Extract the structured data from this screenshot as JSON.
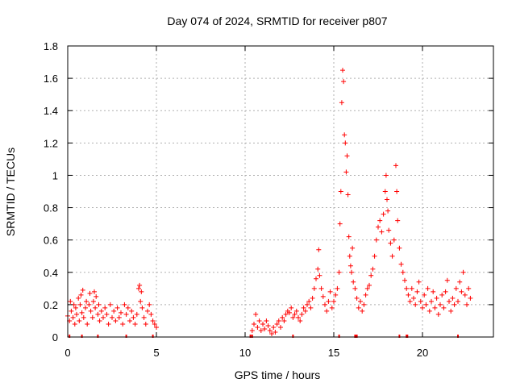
{
  "chart_data": {
    "type": "scatter",
    "title": "Day 074 of 2024, SRMTID for receiver p807",
    "xlabel": "GPS time / hours",
    "ylabel": "SRMTID / TECUs",
    "xlim": [
      0,
      24
    ],
    "ylim": [
      0,
      1.8
    ],
    "x_ticks": [
      0,
      5,
      10,
      15,
      20
    ],
    "x_tick_labels": [
      "0",
      "5",
      "10",
      "15",
      "20"
    ],
    "y_ticks": [
      0,
      0.2,
      0.4,
      0.6,
      0.8,
      1,
      1.2,
      1.4,
      1.6,
      1.8
    ],
    "y_tick_labels": [
      "0",
      "0.2",
      "0.4",
      "0.6",
      "0.8",
      "1",
      "1.2",
      "1.4",
      "1.6",
      "1.8"
    ],
    "grid": true,
    "marker": "+",
    "marker_color": "#ff0000",
    "series": [
      {
        "name": "SRMTID",
        "points": [
          [
            0.0,
            0.13
          ],
          [
            0.1,
            0.1
          ],
          [
            0.15,
            0.22
          ],
          [
            0.2,
            0.16
          ],
          [
            0.3,
            0.12
          ],
          [
            0.35,
            0.2
          ],
          [
            0.4,
            0.08
          ],
          [
            0.45,
            0.18
          ],
          [
            0.5,
            0.14
          ],
          [
            0.6,
            0.24
          ],
          [
            0.65,
            0.1
          ],
          [
            0.7,
            0.2
          ],
          [
            0.75,
            0.26
          ],
          [
            0.8,
            0.15
          ],
          [
            0.85,
            0.29
          ],
          [
            0.9,
            0.12
          ],
          [
            1.0,
            0.18
          ],
          [
            1.05,
            0.22
          ],
          [
            1.1,
            0.08
          ],
          [
            1.2,
            0.2
          ],
          [
            1.25,
            0.27
          ],
          [
            1.3,
            0.16
          ],
          [
            1.4,
            0.12
          ],
          [
            1.45,
            0.22
          ],
          [
            1.5,
            0.28
          ],
          [
            1.55,
            0.18
          ],
          [
            1.6,
            0.25
          ],
          [
            1.7,
            0.14
          ],
          [
            1.75,
            0.2
          ],
          [
            1.8,
            0.1
          ],
          [
            1.9,
            0.16
          ],
          [
            2.0,
            0.12
          ],
          [
            2.1,
            0.18
          ],
          [
            2.2,
            0.14
          ],
          [
            2.3,
            0.08
          ],
          [
            2.4,
            0.2
          ],
          [
            2.5,
            0.12
          ],
          [
            2.6,
            0.16
          ],
          [
            2.7,
            0.1
          ],
          [
            2.8,
            0.18
          ],
          [
            2.9,
            0.12
          ],
          [
            3.0,
            0.15
          ],
          [
            3.1,
            0.08
          ],
          [
            3.2,
            0.2
          ],
          [
            3.3,
            0.14
          ],
          [
            3.4,
            0.18
          ],
          [
            3.5,
            0.1
          ],
          [
            3.6,
            0.16
          ],
          [
            3.7,
            0.12
          ],
          [
            3.8,
            0.08
          ],
          [
            3.9,
            0.14
          ],
          [
            4.0,
            0.3
          ],
          [
            4.05,
            0.32
          ],
          [
            4.1,
            0.22
          ],
          [
            4.15,
            0.28
          ],
          [
            4.2,
            0.18
          ],
          [
            4.3,
            0.12
          ],
          [
            4.4,
            0.08
          ],
          [
            4.5,
            0.16
          ],
          [
            4.6,
            0.2
          ],
          [
            4.7,
            0.14
          ],
          [
            4.8,
            0.1
          ],
          [
            4.9,
            0.08
          ],
          [
            5.0,
            0.06
          ],
          [
            10.4,
            0.04
          ],
          [
            10.5,
            0.08
          ],
          [
            10.6,
            0.14
          ],
          [
            10.7,
            0.06
          ],
          [
            10.8,
            0.1
          ],
          [
            10.9,
            0.04
          ],
          [
            11.0,
            0.08
          ],
          [
            11.1,
            0.05
          ],
          [
            11.2,
            0.1
          ],
          [
            11.3,
            0.07
          ],
          [
            11.4,
            0.04
          ],
          [
            11.5,
            0.02
          ],
          [
            11.6,
            0.06
          ],
          [
            11.7,
            0.03
          ],
          [
            11.8,
            0.08
          ],
          [
            11.9,
            0.1
          ],
          [
            12.0,
            0.06
          ],
          [
            12.1,
            0.12
          ],
          [
            12.2,
            0.1
          ],
          [
            12.3,
            0.14
          ],
          [
            12.4,
            0.16
          ],
          [
            12.5,
            0.15
          ],
          [
            12.6,
            0.18
          ],
          [
            12.7,
            0.12
          ],
          [
            12.8,
            0.14
          ],
          [
            12.9,
            0.16
          ],
          [
            13.0,
            0.12
          ],
          [
            13.1,
            0.1
          ],
          [
            13.2,
            0.14
          ],
          [
            13.3,
            0.18
          ],
          [
            13.4,
            0.16
          ],
          [
            13.5,
            0.2
          ],
          [
            13.6,
            0.22
          ],
          [
            13.7,
            0.18
          ],
          [
            13.8,
            0.24
          ],
          [
            13.9,
            0.3
          ],
          [
            14.0,
            0.36
          ],
          [
            14.1,
            0.42
          ],
          [
            14.15,
            0.54
          ],
          [
            14.2,
            0.38
          ],
          [
            14.3,
            0.3
          ],
          [
            14.4,
            0.25
          ],
          [
            14.5,
            0.2
          ],
          [
            14.6,
            0.16
          ],
          [
            14.7,
            0.22
          ],
          [
            14.8,
            0.28
          ],
          [
            14.9,
            0.18
          ],
          [
            15.0,
            0.22
          ],
          [
            15.1,
            0.26
          ],
          [
            15.2,
            0.3
          ],
          [
            15.3,
            0.4
          ],
          [
            15.35,
            0.7
          ],
          [
            15.4,
            0.9
          ],
          [
            15.45,
            1.45
          ],
          [
            15.5,
            1.65
          ],
          [
            15.55,
            1.58
          ],
          [
            15.6,
            1.25
          ],
          [
            15.65,
            1.2
          ],
          [
            15.7,
            1.02
          ],
          [
            15.75,
            1.12
          ],
          [
            15.8,
            0.88
          ],
          [
            15.85,
            0.62
          ],
          [
            15.9,
            0.5
          ],
          [
            15.95,
            0.44
          ],
          [
            16.0,
            0.4
          ],
          [
            16.05,
            0.55
          ],
          [
            16.1,
            0.34
          ],
          [
            16.2,
            0.3
          ],
          [
            16.3,
            0.24
          ],
          [
            16.4,
            0.18
          ],
          [
            16.5,
            0.22
          ],
          [
            16.6,
            0.16
          ],
          [
            16.7,
            0.2
          ],
          [
            16.8,
            0.26
          ],
          [
            16.9,
            0.3
          ],
          [
            17.0,
            0.32
          ],
          [
            17.1,
            0.38
          ],
          [
            17.2,
            0.42
          ],
          [
            17.3,
            0.5
          ],
          [
            17.4,
            0.6
          ],
          [
            17.5,
            0.68
          ],
          [
            17.6,
            0.72
          ],
          [
            17.7,
            0.65
          ],
          [
            17.8,
            0.76
          ],
          [
            17.9,
            0.9
          ],
          [
            17.95,
            1.0
          ],
          [
            18.0,
            0.85
          ],
          [
            18.05,
            0.78
          ],
          [
            18.1,
            0.66
          ],
          [
            18.2,
            0.58
          ],
          [
            18.3,
            0.5
          ],
          [
            18.4,
            0.6
          ],
          [
            18.5,
            1.06
          ],
          [
            18.55,
            0.9
          ],
          [
            18.6,
            0.72
          ],
          [
            18.7,
            0.55
          ],
          [
            18.8,
            0.45
          ],
          [
            18.9,
            0.4
          ],
          [
            19.0,
            0.35
          ],
          [
            19.1,
            0.3
          ],
          [
            19.2,
            0.26
          ],
          [
            19.3,
            0.22
          ],
          [
            19.4,
            0.3
          ],
          [
            19.5,
            0.24
          ],
          [
            19.6,
            0.2
          ],
          [
            19.7,
            0.28
          ],
          [
            19.8,
            0.34
          ],
          [
            19.9,
            0.22
          ],
          [
            20.0,
            0.18
          ],
          [
            20.1,
            0.26
          ],
          [
            20.2,
            0.2
          ],
          [
            20.3,
            0.3
          ],
          [
            20.4,
            0.16
          ],
          [
            20.5,
            0.22
          ],
          [
            20.6,
            0.28
          ],
          [
            20.7,
            0.18
          ],
          [
            20.8,
            0.24
          ],
          [
            20.9,
            0.14
          ],
          [
            21.0,
            0.2
          ],
          [
            21.1,
            0.26
          ],
          [
            21.2,
            0.18
          ],
          [
            21.3,
            0.28
          ],
          [
            21.4,
            0.35
          ],
          [
            21.5,
            0.22
          ],
          [
            21.6,
            0.16
          ],
          [
            21.7,
            0.24
          ],
          [
            21.8,
            0.2
          ],
          [
            21.9,
            0.3
          ],
          [
            22.0,
            0.22
          ],
          [
            22.1,
            0.34
          ],
          [
            22.2,
            0.28
          ],
          [
            22.3,
            0.4
          ],
          [
            22.4,
            0.26
          ],
          [
            22.5,
            0.2
          ],
          [
            22.6,
            0.3
          ],
          [
            22.7,
            0.24
          ]
        ]
      }
    ],
    "bottom_ticks_x": [
      0.1,
      0.8,
      1.7,
      3.3,
      4.8,
      10.3,
      10.4,
      12.7,
      15.3,
      16.2,
      16.25,
      16.3,
      18.7,
      19.1,
      19.15,
      22.0
    ]
  }
}
